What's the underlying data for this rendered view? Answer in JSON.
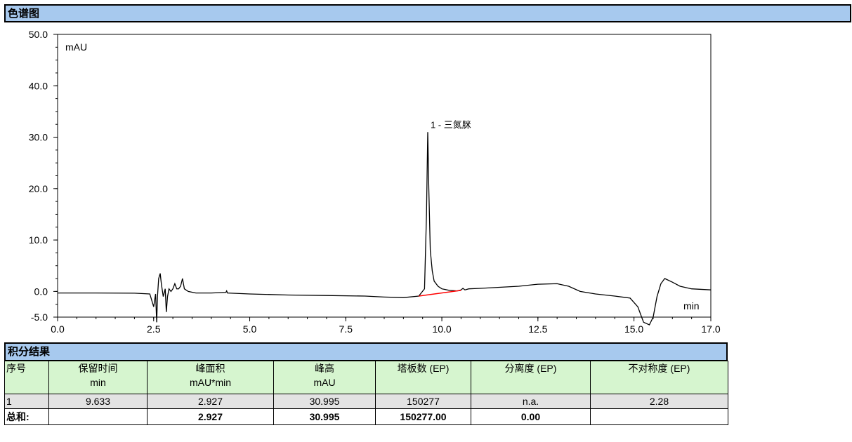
{
  "chromatogram": {
    "section_title": "色谱图"
  },
  "chart_data": {
    "type": "line",
    "title": "",
    "xlabel": "min",
    "ylabel": "mAU",
    "xlim": [
      0.0,
      17.0
    ],
    "ylim": [
      -5.0,
      50.0
    ],
    "x_ticks": [
      "0.0",
      "2.5",
      "5.0",
      "7.5",
      "10.0",
      "12.5",
      "15.0",
      "17.0"
    ],
    "y_ticks": [
      "50.0",
      "40.0",
      "30.0",
      "20.0",
      "10.0",
      "0.0",
      "-5.0"
    ],
    "series": [
      {
        "color": "#000000",
        "x": [
          0.0,
          1.0,
          2.0,
          2.4,
          2.5,
          2.55,
          2.58,
          2.6,
          2.63,
          2.67,
          2.7,
          2.75,
          2.8,
          2.83,
          2.86,
          2.9,
          2.95,
          3.0,
          3.05,
          3.1,
          3.15,
          3.2,
          3.25,
          3.3,
          3.4,
          3.6,
          4.0,
          4.38,
          4.4,
          4.42,
          5.0,
          6.0,
          7.0,
          8.0,
          8.5,
          9.0,
          9.4,
          9.55,
          9.6,
          9.633,
          9.66,
          9.7,
          9.75,
          9.8,
          9.9,
          10.0,
          10.2,
          10.4,
          10.5,
          10.55,
          10.6,
          10.7,
          11.0,
          11.5,
          12.0,
          12.5,
          13.0,
          13.3,
          13.6,
          14.0,
          14.5,
          14.9,
          15.1,
          15.2,
          15.25,
          15.4,
          15.5,
          15.6,
          15.7,
          15.8,
          16.0,
          16.2,
          16.5,
          17.0
        ],
        "y": [
          -0.3,
          -0.3,
          -0.35,
          -0.5,
          -3.0,
          -0.5,
          -6.0,
          -1.0,
          2.5,
          3.5,
          1.5,
          -1.0,
          0.5,
          -4.0,
          -1.0,
          0.5,
          0.0,
          0.5,
          1.5,
          0.5,
          0.5,
          1.0,
          2.5,
          0.5,
          0.0,
          -0.3,
          -0.3,
          -0.2,
          0.1,
          -0.3,
          -0.5,
          -0.7,
          -0.8,
          -0.9,
          -1.1,
          -1.2,
          -0.9,
          0.5,
          15.0,
          30.995,
          20.0,
          8.0,
          4.0,
          2.0,
          1.0,
          0.5,
          0.2,
          0.1,
          0.3,
          0.6,
          0.3,
          0.5,
          0.6,
          0.8,
          1.0,
          1.4,
          1.5,
          1.0,
          0.0,
          -0.5,
          -0.9,
          -1.3,
          -3.0,
          -5.0,
          -6.0,
          -6.5,
          -5.0,
          -1.0,
          1.5,
          2.5,
          1.8,
          1.0,
          0.5,
          0.3
        ]
      },
      {
        "color": "#ff0000",
        "x": [
          9.4,
          10.5
        ],
        "y": [
          -0.9,
          0.2
        ]
      }
    ],
    "annotations": [
      {
        "text": "1 - 三氮脒",
        "x": 9.633,
        "y": 30.995
      }
    ]
  },
  "results": {
    "section_title": "积分结果",
    "columns": [
      {
        "name": "序号",
        "unit": ""
      },
      {
        "name": "保留时间",
        "unit": "min"
      },
      {
        "name": "峰面积",
        "unit": "mAU*min"
      },
      {
        "name": "峰高",
        "unit": "mAU"
      },
      {
        "name": "塔板数 (EP)",
        "unit": ""
      },
      {
        "name": "分离度 (EP)",
        "unit": ""
      },
      {
        "name": "不对称度 (EP)",
        "unit": ""
      }
    ],
    "rows": [
      [
        "1",
        "9.633",
        "2.927",
        "30.995",
        "150277",
        "n.a.",
        "2.28"
      ]
    ],
    "total": [
      "总和:",
      "",
      "2.927",
      "30.995",
      "150277.00",
      "0.00",
      ""
    ]
  }
}
